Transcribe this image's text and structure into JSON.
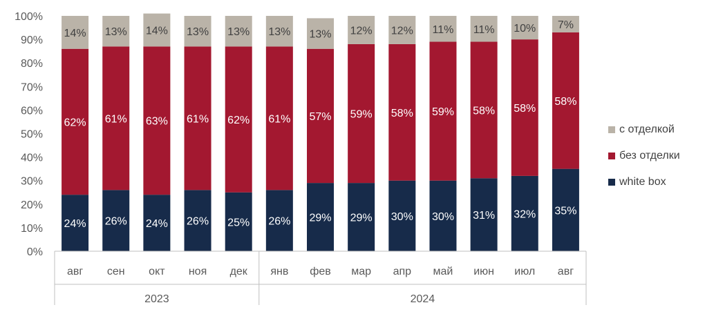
{
  "chart_data": {
    "type": "bar",
    "stacked": true,
    "xlabel": "",
    "ylabel": "",
    "ylim": [
      0,
      100
    ],
    "yticks": [
      "0%",
      "10%",
      "20%",
      "30%",
      "40%",
      "50%",
      "60%",
      "70%",
      "80%",
      "90%",
      "100%"
    ],
    "categories": [
      "авг",
      "сен",
      "окт",
      "ноя",
      "дек",
      "янв",
      "фев",
      "мар",
      "апр",
      "май",
      "июн",
      "июл",
      "авг"
    ],
    "groups": [
      {
        "label": "2023",
        "count": 5
      },
      {
        "label": "2024",
        "count": 8
      }
    ],
    "series": [
      {
        "name": "white box",
        "color": "#172b4a",
        "label_color": "#ffffff",
        "values": [
          24,
          26,
          24,
          26,
          25,
          26,
          29,
          29,
          30,
          30,
          31,
          32,
          35
        ],
        "labels": [
          "24%",
          "26%",
          "24%",
          "26%",
          "25%",
          "26%",
          "29%",
          "29%",
          "30%",
          "30%",
          "31%",
          "32%",
          "35%"
        ]
      },
      {
        "name": "без отделки",
        "color": "#a31830",
        "label_color": "#ffffff",
        "values": [
          62,
          61,
          63,
          61,
          62,
          61,
          57,
          59,
          58,
          59,
          58,
          58,
          58
        ],
        "labels": [
          "62%",
          "61%",
          "63%",
          "61%",
          "62%",
          "61%",
          "57%",
          "59%",
          "58%",
          "59%",
          "58%",
          "58%",
          "58%"
        ]
      },
      {
        "name": "с отделкой",
        "color": "#bab3a8",
        "label_color": "#404040",
        "values": [
          14,
          13,
          14,
          13,
          13,
          13,
          13,
          12,
          12,
          11,
          11,
          10,
          7
        ],
        "labels": [
          "14%",
          "13%",
          "14%",
          "13%",
          "13%",
          "13%",
          "13%",
          "12%",
          "12%",
          "11%",
          "11%",
          "10%",
          "7%"
        ]
      }
    ],
    "legend_position": "right",
    "grid": false
  },
  "legend": {
    "items": [
      {
        "name": "с отделкой",
        "color": "#bab3a8"
      },
      {
        "name": "без отделки",
        "color": "#a31830"
      },
      {
        "name": "white box",
        "color": "#172b4a"
      }
    ]
  }
}
